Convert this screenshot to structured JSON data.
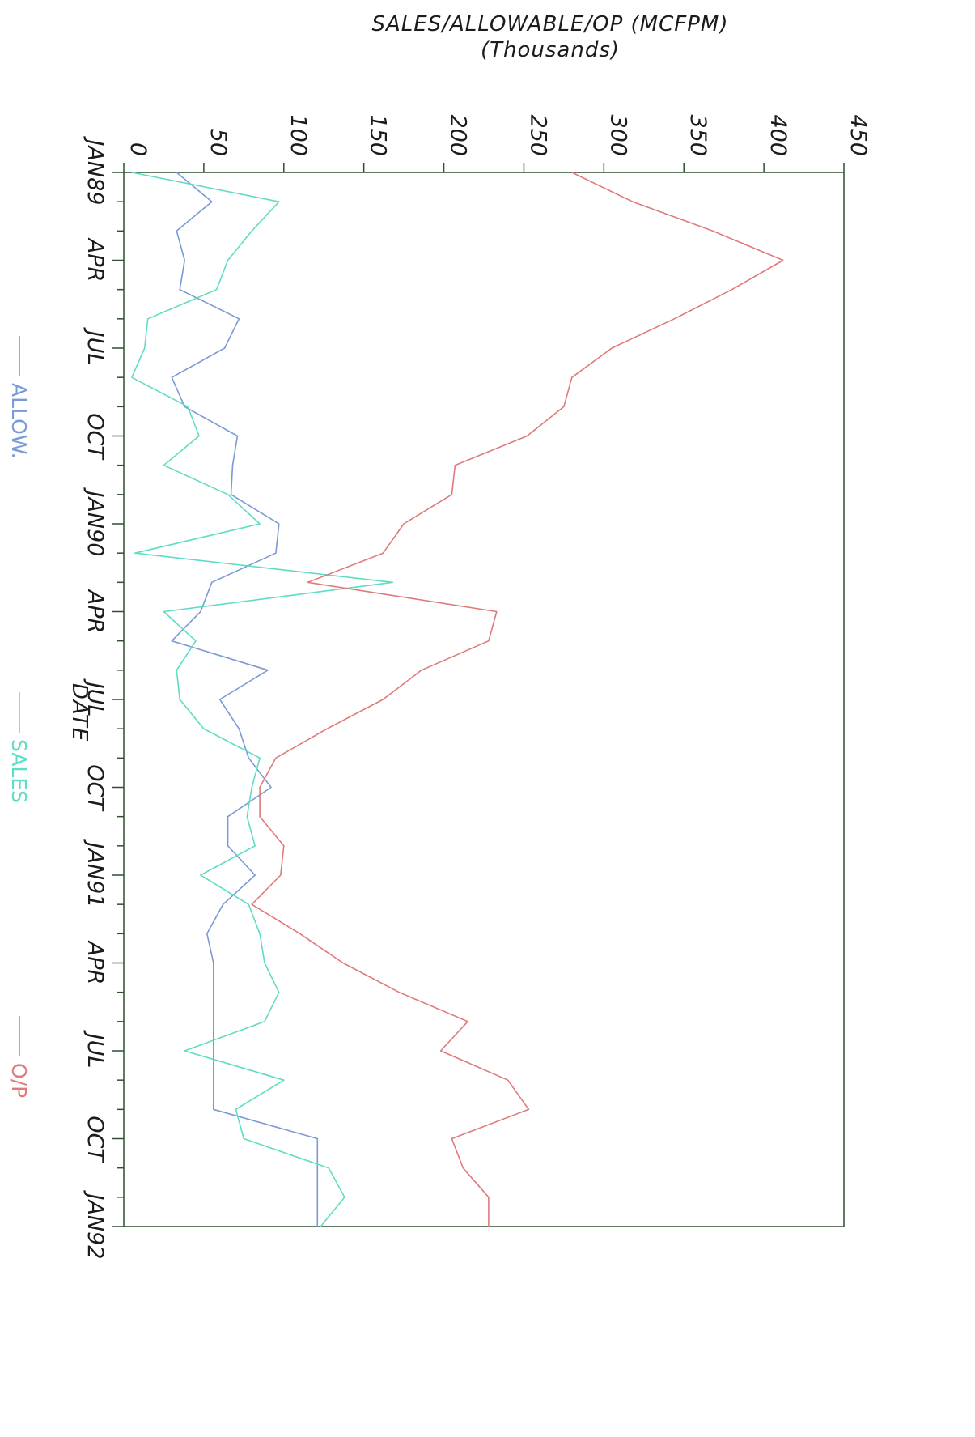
{
  "chart_data": {
    "type": "line",
    "title": "",
    "ylabel": "SALES/ALLOWABLE/OP (MCFPM)",
    "ylabel_sub": "(Thousands)",
    "xlabel": "DATE",
    "x_ticks": [
      "JAN89",
      "APR",
      "JUL",
      "OCT",
      "JAN90",
      "APR",
      "JUL",
      "OCT",
      "JAN91",
      "APR",
      "JUL",
      "OCT",
      "JAN92"
    ],
    "y_ticks": [
      "0",
      "50",
      "100",
      "150",
      "200",
      "250",
      "300",
      "350",
      "400",
      "450"
    ],
    "ylim": [
      0,
      450
    ],
    "x_range_months": [
      0,
      36
    ],
    "orientation": "rotated 90 degrees clockwise",
    "legend_position": "bottom",
    "series": [
      {
        "name": "ALLOW.",
        "color": "#7a9ad6",
        "x": [
          0,
          1,
          2,
          3,
          4,
          5,
          6,
          7,
          8,
          9,
          10,
          11,
          12,
          13,
          14,
          15,
          16,
          17,
          18,
          19,
          20,
          21,
          22,
          23,
          24,
          25,
          26,
          27,
          28,
          29,
          30,
          31,
          32,
          33,
          34,
          35,
          36
        ],
        "values": [
          33,
          55,
          33,
          38,
          35,
          72,
          63,
          30,
          38,
          71,
          68,
          67,
          97,
          95,
          55,
          48,
          30,
          90,
          60,
          72,
          78,
          92,
          65,
          65,
          82,
          62,
          52,
          56,
          56,
          56,
          56,
          56,
          56,
          121,
          121,
          121,
          121
        ]
      },
      {
        "name": "SALES",
        "color": "#5fdcc4",
        "x": [
          0,
          1,
          2,
          3,
          4,
          5,
          6,
          7,
          8,
          9,
          10,
          11,
          12,
          13,
          14,
          15,
          16,
          17,
          18,
          19,
          20,
          21,
          22,
          23,
          24,
          25,
          26,
          27,
          28,
          29,
          30,
          31,
          32,
          33,
          34,
          35,
          36
        ],
        "values": [
          5,
          97,
          80,
          65,
          58,
          15,
          13,
          5,
          40,
          47,
          25,
          65,
          85,
          7,
          168,
          25,
          45,
          33,
          35,
          50,
          85,
          80,
          77,
          82,
          48,
          78,
          85,
          88,
          97,
          88,
          38,
          100,
          70,
          75,
          128,
          138,
          123
        ]
      },
      {
        "name": "O/P",
        "color": "#e07a7a",
        "x": [
          0,
          1,
          2,
          3,
          4,
          5,
          6,
          7,
          8,
          9,
          10,
          11,
          12,
          13,
          14,
          15,
          16,
          17,
          18,
          19,
          20,
          21,
          22,
          23,
          24,
          25,
          26,
          27,
          28,
          29,
          30,
          31,
          32,
          33,
          34,
          35,
          36
        ],
        "values": [
          280,
          318,
          368,
          412,
          380,
          344,
          305,
          280,
          275,
          252,
          207,
          205,
          175,
          162,
          115,
          233,
          228,
          186,
          162,
          127,
          95,
          85,
          85,
          100,
          98,
          80,
          110,
          137,
          172,
          215,
          198,
          240,
          253,
          205,
          212,
          228,
          228
        ]
      }
    ]
  }
}
